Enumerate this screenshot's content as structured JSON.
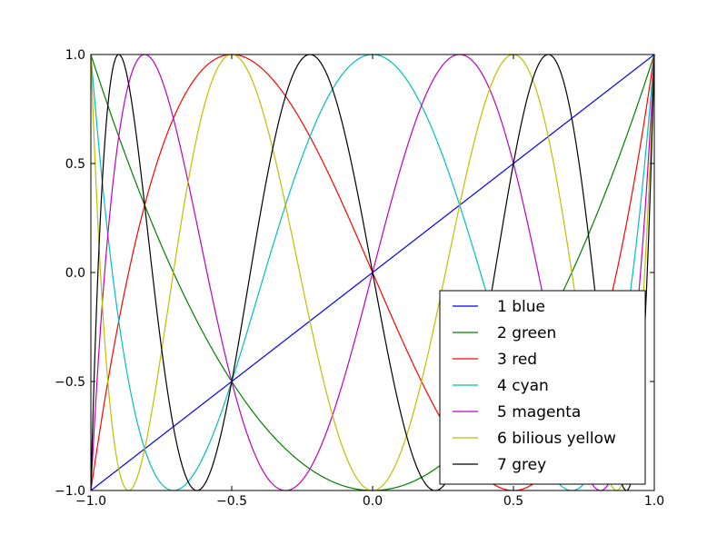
{
  "chart_data": {
    "type": "line",
    "title": "",
    "xlabel": "",
    "ylabel": "",
    "xlim": [
      -1.0,
      1.0
    ],
    "ylim": [
      -1.0,
      1.0
    ],
    "grid": false,
    "legend_position": "lower-right",
    "function": "cos(n·arccos(x)) (Chebyshev polynomials T1–T7)",
    "x_ticks": [
      {
        "value": -1.0,
        "label": "−1.0"
      },
      {
        "value": -0.5,
        "label": "−0.5"
      },
      {
        "value": 0.0,
        "label": "0.0"
      },
      {
        "value": 0.5,
        "label": "0.5"
      },
      {
        "value": 1.0,
        "label": "1.0"
      }
    ],
    "y_ticks": [
      {
        "value": -1.0,
        "label": "−1.0"
      },
      {
        "value": -0.5,
        "label": "−0.5"
      },
      {
        "value": 0.0,
        "label": "0.0"
      },
      {
        "value": 0.5,
        "label": "0.5"
      },
      {
        "value": 1.0,
        "label": "1.0"
      }
    ],
    "series": [
      {
        "name": "1 blue",
        "n": 1,
        "color": "#0000ff"
      },
      {
        "name": "2 green",
        "n": 2,
        "color": "#008000"
      },
      {
        "name": "3 red",
        "n": 3,
        "color": "#ff0000"
      },
      {
        "name": "4 cyan",
        "n": 4,
        "color": "#00bfbf"
      },
      {
        "name": "5 magenta",
        "n": 5,
        "color": "#bf00bf"
      },
      {
        "name": "6 bilious yellow",
        "n": 6,
        "color": "#bfbf00"
      },
      {
        "name": "7 grey",
        "n": 7,
        "color": "#000000"
      }
    ]
  }
}
